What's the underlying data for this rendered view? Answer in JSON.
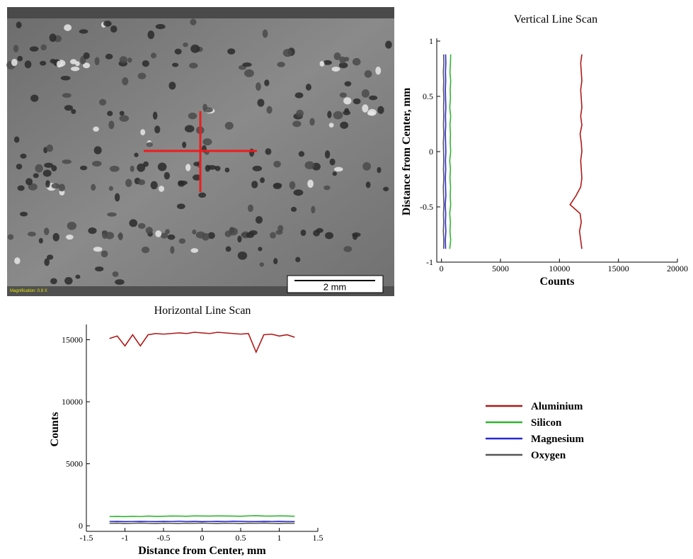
{
  "image": {
    "scale_bar": "2 mm",
    "magnification": "Magnification: 0.8 X"
  },
  "chart_data": [
    {
      "type": "line",
      "orientation": "vertical",
      "title": "Vertical Line Scan",
      "x_label": "Counts",
      "y_label": "Distance from Center, mm",
      "y": [
        -0.88,
        -0.8,
        -0.72,
        -0.64,
        -0.56,
        -0.48,
        -0.4,
        -0.32,
        -0.24,
        -0.16,
        -0.08,
        0,
        0.08,
        0.16,
        0.24,
        0.32,
        0.4,
        0.48,
        0.56,
        0.64,
        0.72,
        0.8,
        0.88
      ],
      "series": [
        {
          "name": "Aluminium",
          "color": "#b01818",
          "values": [
            11900,
            11800,
            11700,
            11850,
            11750,
            10900,
            11400,
            11800,
            11900,
            11850,
            11800,
            11900,
            11850,
            11750,
            11900,
            11800,
            11900,
            11850,
            11800,
            11900,
            11850,
            11800,
            11900
          ]
        },
        {
          "name": "Silicon",
          "color": "#2fb52f",
          "values": [
            700,
            780,
            720,
            760,
            700,
            780,
            740,
            770,
            720,
            760,
            700,
            780,
            740,
            760,
            720,
            780,
            700,
            760,
            740,
            780,
            720,
            760,
            780
          ]
        },
        {
          "name": "Magnesium",
          "color": "#2a2ad0",
          "values": [
            350,
            330,
            370,
            340,
            360,
            320,
            370,
            350,
            330,
            360,
            340,
            370,
            350,
            330,
            360,
            340,
            370,
            350,
            330,
            360,
            340,
            370,
            350
          ]
        },
        {
          "name": "Oxygen",
          "color": "#555555",
          "values": [
            180,
            200,
            160,
            190,
            170,
            210,
            180,
            160,
            200,
            170,
            190,
            180,
            160,
            200,
            170,
            190,
            180,
            200,
            170,
            190,
            160,
            200,
            180
          ]
        }
      ],
      "xlim": [
        -400,
        20000
      ],
      "xticks": [
        0,
        5000,
        10000,
        15000,
        20000
      ],
      "ylim": [
        -1,
        1
      ],
      "yticks": [
        -1,
        -0.5,
        0,
        0.5,
        1
      ]
    },
    {
      "type": "line",
      "orientation": "horizontal",
      "title": "Horizontal Line Scan",
      "x_label": "Distance from Center, mm",
      "y_label": "Counts",
      "x": [
        -1.2,
        -1.1,
        -1,
        -0.9,
        -0.8,
        -0.7,
        -0.6,
        -0.5,
        -0.4,
        -0.3,
        -0.2,
        -0.1,
        0,
        0.1,
        0.2,
        0.3,
        0.4,
        0.5,
        0.6,
        0.7,
        0.8,
        0.9,
        1,
        1.1,
        1.2
      ],
      "series": [
        {
          "name": "Aluminium",
          "color": "#b01818",
          "values": [
            15100,
            15300,
            14500,
            15400,
            14500,
            15400,
            15500,
            15450,
            15500,
            15550,
            15500,
            15600,
            15550,
            15500,
            15600,
            15550,
            15500,
            15450,
            15500,
            14000,
            15400,
            15450,
            15300,
            15400,
            15200
          ]
        },
        {
          "name": "Silicon",
          "color": "#2fb52f",
          "values": [
            750,
            760,
            740,
            770,
            750,
            780,
            760,
            770,
            790,
            780,
            770,
            800,
            790,
            780,
            800,
            790,
            780,
            770,
            800,
            820,
            790,
            780,
            800,
            790,
            770
          ]
        },
        {
          "name": "Magnesium",
          "color": "#2a2ad0",
          "values": [
            350,
            360,
            340,
            350,
            360,
            350,
            340,
            360,
            350,
            370,
            350,
            360,
            340,
            350,
            360,
            350,
            370,
            360,
            350,
            340,
            360,
            350,
            360,
            350,
            340
          ]
        },
        {
          "name": "Oxygen",
          "color": "#555555",
          "values": [
            200,
            210,
            190,
            200,
            220,
            200,
            190,
            210,
            200,
            190,
            210,
            200,
            220,
            200,
            190,
            210,
            200,
            190,
            210,
            200,
            220,
            200,
            190,
            210,
            200
          ]
        }
      ],
      "xlim": [
        -1.5,
        1.5
      ],
      "xticks": [
        -1.5,
        -1,
        -0.5,
        0,
        0.5,
        1,
        1.5
      ],
      "ylim": [
        -450,
        16000
      ],
      "yticks": [
        0,
        5000,
        10000,
        15000
      ]
    }
  ]
}
